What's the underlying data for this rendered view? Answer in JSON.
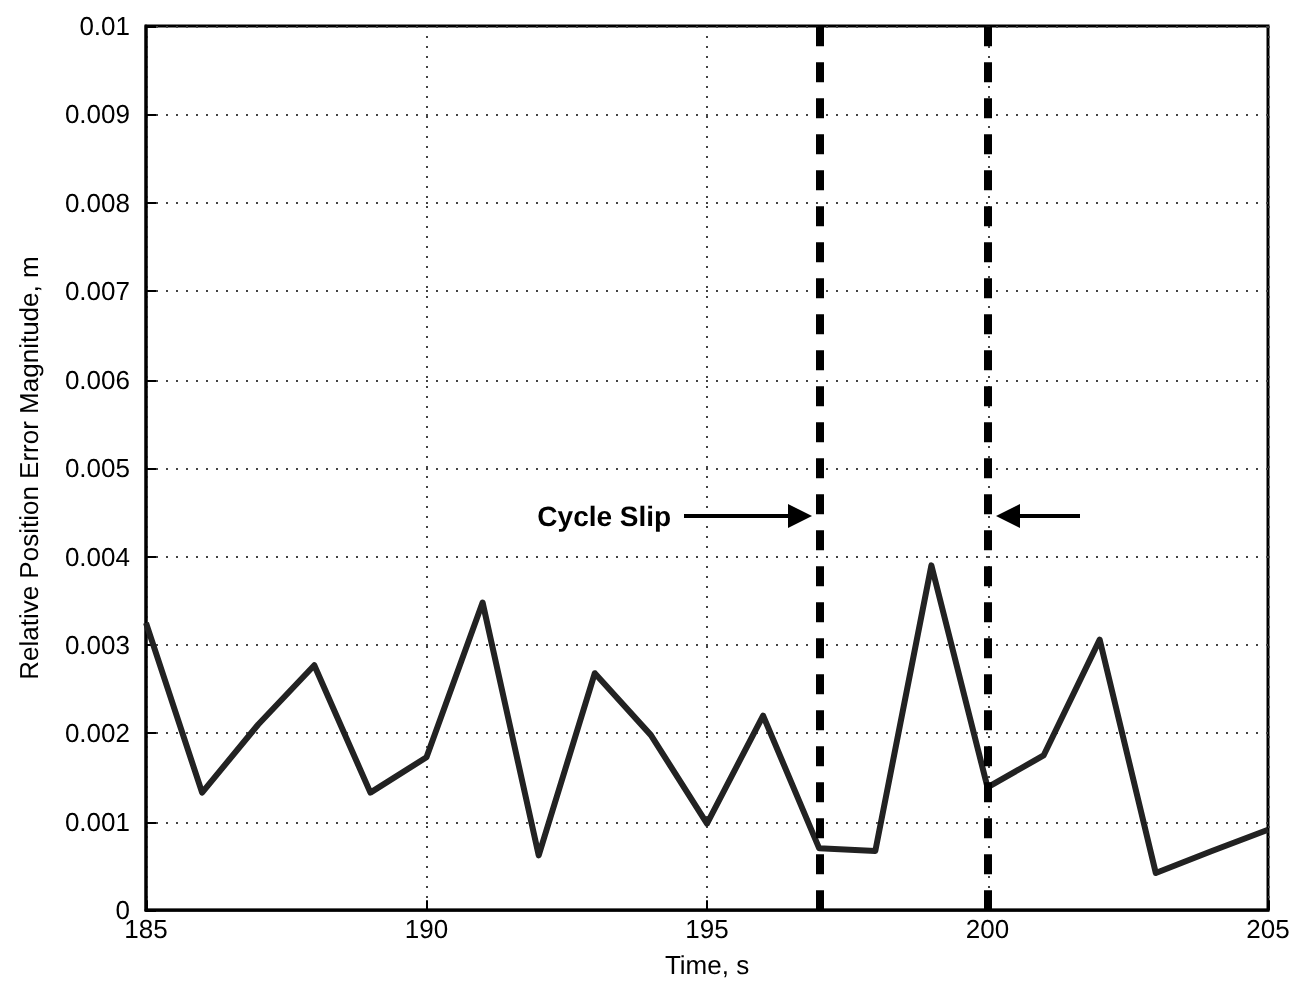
{
  "chart_data": {
    "type": "line",
    "xlabel": "Time, s",
    "ylabel": "Relative Position Error Magnitude, m",
    "x": [
      185,
      186,
      187,
      188,
      189,
      190,
      191,
      192,
      193,
      194,
      195,
      196,
      197,
      198,
      199,
      200,
      201,
      202,
      203,
      204,
      205
    ],
    "series": [
      {
        "color": "#222222",
        "values": [
          0.00325,
          0.00133,
          0.0021,
          0.00277,
          0.00133,
          0.00173,
          0.00348,
          0.00062,
          0.00268,
          0.00198,
          0.00098,
          0.0022,
          0.0007,
          0.00067,
          0.0039,
          0.00139,
          0.00175,
          0.00306,
          0.00042,
          0.00067,
          0.00091
        ]
      }
    ],
    "xlim": [
      185,
      205
    ],
    "xticks": [
      185,
      190,
      195,
      200,
      205
    ],
    "ylim": [
      0,
      0.01
    ],
    "yticks": [
      0,
      0.001,
      0.002,
      0.003,
      0.004,
      0.005,
      0.006,
      0.007,
      0.008,
      0.009,
      0.01
    ],
    "grid": true,
    "marker": "none",
    "line_style": "solid",
    "ref_lines": [
      {
        "axis": "x",
        "value": 197,
        "color": "#000000",
        "line_style": "dashed"
      },
      {
        "axis": "x",
        "value": 200,
        "color": "#000000",
        "line_style": "dashed"
      }
    ],
    "annotations": [
      "Cycle Slip"
    ]
  }
}
